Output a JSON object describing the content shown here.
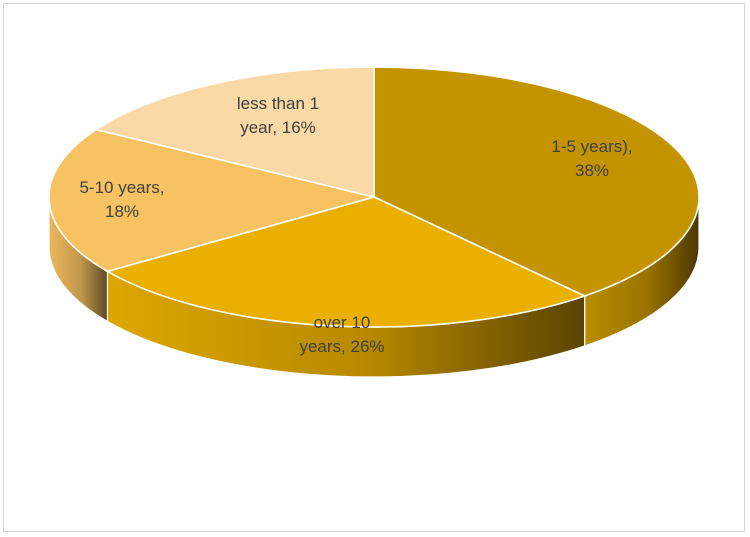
{
  "chart_data": {
    "type": "pie",
    "three_d": true,
    "title": "",
    "slices": [
      {
        "label": "1-5 years)",
        "value": 38,
        "display": "38%",
        "color": "#c49400"
      },
      {
        "label": "over 10 years",
        "value": 26,
        "display": "26%",
        "color": "#e9b000"
      },
      {
        "label": "5-10 years",
        "value": 18,
        "display": "18%",
        "color": "#f7c261"
      },
      {
        "label": "less than 1 year",
        "value": 16,
        "display": "16%",
        "color": "#f9d9a5"
      }
    ],
    "label_lines": [
      [
        "1-5 years),",
        "38%"
      ],
      [
        "over 10",
        "years, 26%"
      ],
      [
        "5-10 years,",
        "18%"
      ],
      [
        "less than 1",
        "year, 16%"
      ]
    ],
    "legend": "none",
    "background": "#ffffff"
  }
}
